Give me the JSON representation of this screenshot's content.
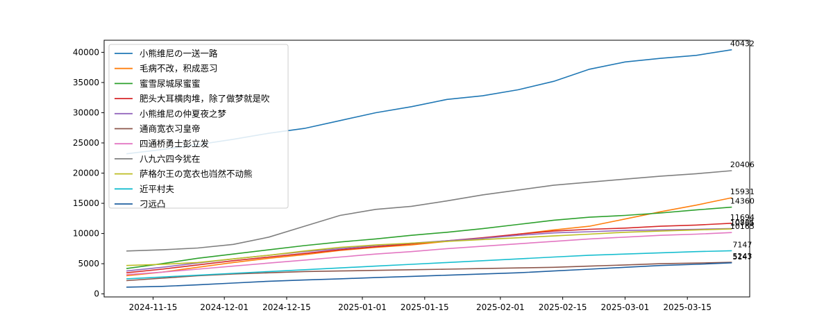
{
  "chart_data": {
    "type": "line",
    "title": "",
    "xlabel": "",
    "ylabel": "",
    "x_range": [
      "2024-11-04",
      "2025-03-29"
    ],
    "ylim": [
      -500,
      42000
    ],
    "x_ticks": [
      "2024-11-15",
      "2024-12-01",
      "2024-12-15",
      "2025-01-01",
      "2025-01-15",
      "2025-02-01",
      "2025-02-15",
      "2025-03-01",
      "2025-03-15"
    ],
    "y_ticks": [
      0,
      5000,
      10000,
      15000,
      20000,
      25000,
      30000,
      35000,
      40000
    ],
    "grid": false,
    "legend": "upper-left",
    "x_dates": [
      "2024-11-09",
      "2024-11-17",
      "2024-11-25",
      "2024-12-03",
      "2024-12-11",
      "2024-12-19",
      "2024-12-27",
      "2025-01-04",
      "2025-01-12",
      "2025-01-20",
      "2025-01-28",
      "2025-02-05",
      "2025-02-13",
      "2025-02-21",
      "2025-03-01",
      "2025-03-09",
      "2025-03-17",
      "2025-03-25"
    ],
    "series": [
      {
        "name": "小熊维尼の一送一路",
        "color": "#1f77b4",
        "end_label": "40432",
        "values": [
          23200,
          23900,
          24700,
          25600,
          26600,
          27400,
          28700,
          30000,
          31000,
          32200,
          32800,
          33800,
          35200,
          37200,
          38400,
          39000,
          39500,
          40432
        ]
      },
      {
        "name": "毛病不改，积成恶习",
        "color": "#ff7f0e",
        "end_label": "15931",
        "values": [
          3000,
          3600,
          4400,
          5200,
          5900,
          6500,
          7200,
          7700,
          8100,
          8700,
          9200,
          9900,
          10600,
          11200,
          12400,
          13600,
          14700,
          15931
        ]
      },
      {
        "name": "蜜雪尿城尿蜜蜜",
        "color": "#2ca02c",
        "end_label": "14360",
        "values": [
          4200,
          5000,
          5900,
          6600,
          7300,
          8000,
          8600,
          9100,
          9700,
          10200,
          10800,
          11500,
          12200,
          12700,
          13000,
          13400,
          13900,
          14360
        ]
      },
      {
        "name": "肥头大耳横肉堆，除了做梦就是吹",
        "color": "#d62728",
        "end_label": "11694",
        "values": [
          3500,
          4100,
          4800,
          5500,
          6100,
          6700,
          7300,
          7800,
          8300,
          8800,
          9300,
          9900,
          10400,
          10700,
          10900,
          11200,
          11400,
          11694
        ]
      },
      {
        "name": "小熊维尼の仲夏夜之梦",
        "color": "#9467bd",
        "end_label": "10831",
        "values": [
          3800,
          4400,
          5100,
          5800,
          6400,
          7000,
          7500,
          8000,
          8400,
          8800,
          9200,
          9700,
          10100,
          10300,
          10500,
          10600,
          10700,
          10831
        ]
      },
      {
        "name": "通商宽衣习皇帝",
        "color": "#8c564b",
        "end_label": "5243",
        "values": [
          2200,
          2600,
          3000,
          3300,
          3500,
          3700,
          3800,
          3900,
          4000,
          4100,
          4200,
          4300,
          4400,
          4600,
          4800,
          5000,
          5100,
          5243
        ]
      },
      {
        "name": "四通桥勇士彭立发",
        "color": "#e377c2",
        "end_label": "10165",
        "values": [
          3200,
          3600,
          4100,
          4600,
          5100,
          5600,
          6100,
          6600,
          7000,
          7500,
          7900,
          8300,
          8700,
          9100,
          9400,
          9700,
          9900,
          10165
        ]
      },
      {
        "name": "八九六四今犹在",
        "color": "#7f7f7f",
        "end_label": "20406",
        "values": [
          7100,
          7300,
          7600,
          8200,
          9400,
          11200,
          13000,
          14000,
          14500,
          15400,
          16400,
          17200,
          18000,
          18500,
          19000,
          19500,
          19900,
          20406
        ]
      },
      {
        "name": "萨格尔王の宽衣也岿然不动熊",
        "color": "#bcbd22",
        "end_label": "10765",
        "values": [
          4700,
          4900,
          5200,
          5800,
          6400,
          7100,
          7700,
          8100,
          8400,
          8700,
          9000,
          9300,
          9600,
          9900,
          10200,
          10400,
          10600,
          10765
        ]
      },
      {
        "name": "近平村夫",
        "color": "#17becf",
        "end_label": "7147",
        "values": [
          2500,
          2800,
          3100,
          3400,
          3700,
          4000,
          4300,
          4600,
          4900,
          5200,
          5500,
          5800,
          6100,
          6400,
          6600,
          6800,
          7000,
          7147
        ]
      },
      {
        "name": "刁远凸",
        "color": "#1f5f9f",
        "end_label": "5147",
        "values": [
          1125,
          1250,
          1500,
          1800,
          2100,
          2300,
          2500,
          2700,
          2900,
          3100,
          3300,
          3500,
          3800,
          4100,
          4400,
          4700,
          4900,
          5147
        ]
      }
    ]
  }
}
